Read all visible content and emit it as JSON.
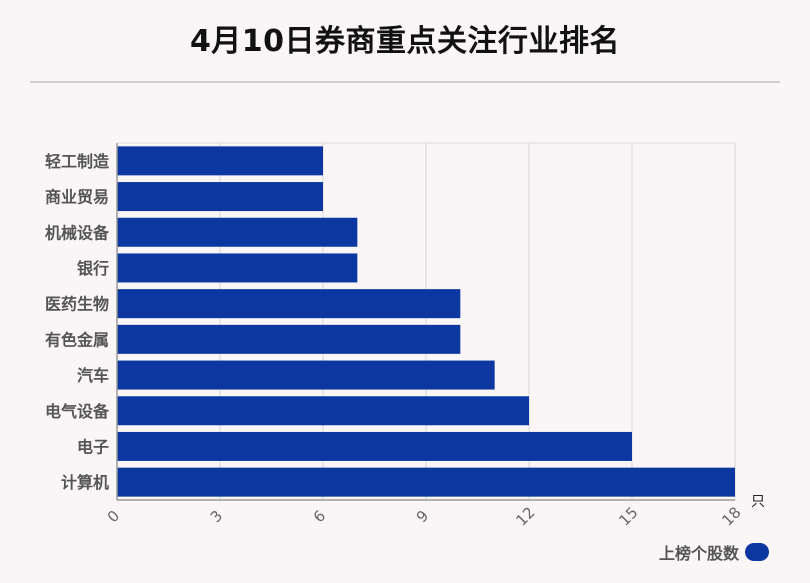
{
  "chart_data": {
    "type": "bar",
    "orientation": "horizontal",
    "title": "4月10日券商重点关注行业排名",
    "categories": [
      "轻工制造",
      "商业贸易",
      "机械设备",
      "银行",
      "医药生物",
      "有色金属",
      "汽车",
      "电气设备",
      "电子",
      "计算机"
    ],
    "series": [
      {
        "name": "上榜个股数",
        "values": [
          6,
          6,
          7,
          7,
          10,
          10,
          11,
          12,
          15,
          18
        ]
      }
    ],
    "xlim": [
      0,
      18
    ],
    "xticks": [
      0,
      3,
      6,
      9,
      12,
      15,
      18
    ],
    "xunit": "只",
    "grid": true,
    "legend_position": "bottom-right",
    "bar_color": "#0d37a0"
  }
}
